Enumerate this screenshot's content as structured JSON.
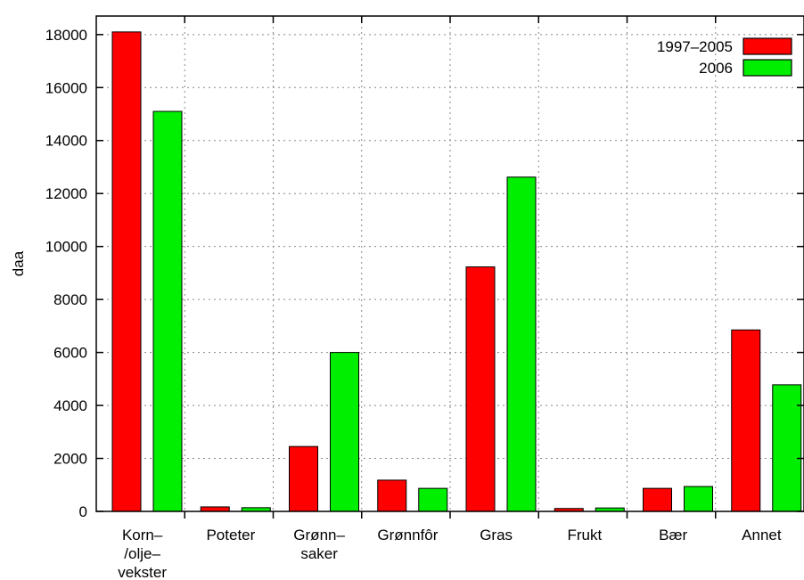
{
  "chart_data": {
    "type": "bar",
    "ylabel": "daa",
    "xlabel": "",
    "title": "",
    "ylim": [
      0,
      18700
    ],
    "yticks": [
      0,
      2000,
      4000,
      6000,
      8000,
      10000,
      12000,
      14000,
      16000,
      18000
    ],
    "grid": true,
    "legend_position": "top-right",
    "categories": [
      [
        "Korn–",
        "/olje–",
        "vekster"
      ],
      [
        "Poteter"
      ],
      [
        "Grønn–",
        "saker"
      ],
      [
        "Grønnfôr"
      ],
      [
        "Gras"
      ],
      [
        "Frukt"
      ],
      [
        "Bær"
      ],
      [
        "Annet"
      ]
    ],
    "series": [
      {
        "name": "1997–2005",
        "color": "#ff0000",
        "values": [
          18100,
          170,
          2450,
          1180,
          9230,
          110,
          870,
          6850
        ]
      },
      {
        "name": "2006",
        "color": "#00ee00",
        "values": [
          15100,
          140,
          6000,
          870,
          12620,
          130,
          940,
          4780
        ]
      }
    ]
  }
}
